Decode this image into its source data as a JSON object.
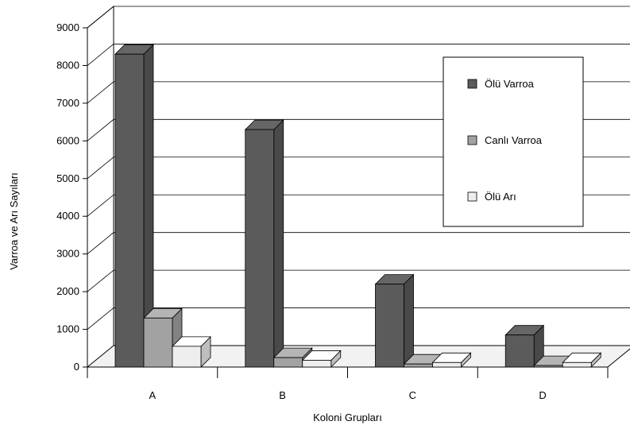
{
  "chart_data": {
    "type": "bar",
    "title": "",
    "xlabel": "Koloni Grupları",
    "ylabel": "Varroa ve Arı Sayıları",
    "ylim": [
      0,
      9000
    ],
    "yticks": [
      "0",
      "1000",
      "2000",
      "3000",
      "4000",
      "5000",
      "6000",
      "7000",
      "8000",
      "9000"
    ],
    "grid": true,
    "legend_position": "top-right",
    "categories": [
      "A",
      "B",
      "C",
      "D"
    ],
    "series": [
      {
        "name": "Ölü Varroa",
        "values": [
          8300,
          6300,
          2200,
          850
        ],
        "color": "#5b5b5b"
      },
      {
        "name": "Canlı Varroa",
        "values": [
          1300,
          250,
          80,
          40
        ],
        "color": "#a2a2a2"
      },
      {
        "name": "Ölü Arı",
        "values": [
          550,
          180,
          120,
          120
        ],
        "color": "#eeeeee"
      }
    ]
  }
}
